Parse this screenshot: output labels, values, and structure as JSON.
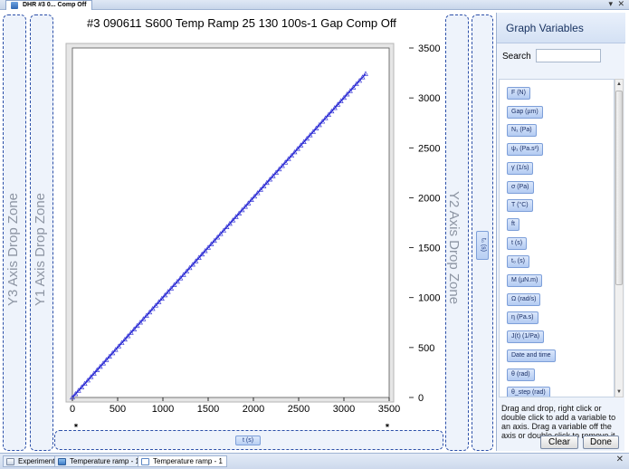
{
  "window": {
    "doc_tab_label": "DHR #3 0... Comp Off",
    "dropdown_glyph": "▾",
    "close_glyph": "✕"
  },
  "dropzones": {
    "y3": "Y3 Axis Drop Zone",
    "y1": "Y1 Axis Drop Zone",
    "y2": "Y2 Axis Drop Zone",
    "y2_variable": "t₀ (s)",
    "x_variable": "t (s)"
  },
  "chart_data": {
    "type": "scatter",
    "title": "#3 090611 S600 Temp Ramp 25 130 100s-1 Gap Comp Off",
    "xlim": [
      0,
      3500
    ],
    "ylim": [
      0,
      3500
    ],
    "xticks": [
      "0",
      "500",
      "1000",
      "1500",
      "2000",
      "2500",
      "3000",
      "3500"
    ],
    "yticks": [
      "0",
      "500",
      "1000",
      "1500",
      "2000",
      "2500",
      "3000",
      "3500"
    ],
    "series": [
      {
        "start": [
          0,
          0
        ],
        "end": [
          3240,
          3240
        ],
        "marker": "triangle",
        "color": "#2b2bd4"
      }
    ]
  },
  "panel": {
    "title": "Graph Variables",
    "search_label": "Search",
    "search_value": "",
    "variables": [
      "F (N)",
      "Gap (µm)",
      "N₁ (Pa)",
      "ψ₁ (Pa.s²)",
      "γ̇ (1/s)",
      "σ (Pa)",
      "T (°C)",
      "ft",
      "t (s)",
      "t₀ (s)",
      "M (µN.m)",
      "Ω (rad/s)",
      "η (Pa.s)",
      "J(t) (1/Pa)",
      "Date and time",
      "θ (rad)",
      "θ_step (rad)"
    ],
    "help_text": "Drag and drop, right click or double click to add a variable to an axis. Drag a variable off the axis or double click to remove it.",
    "clear_label": "Clear",
    "done_label": "Done",
    "scroll_up_glyph": "▲",
    "scroll_down_glyph": "▼"
  },
  "bottom_tabs": [
    {
      "label": "Experiment",
      "icon": "experiment-icon"
    },
    {
      "label": "Temperature ramp - 1",
      "icon": "table-icon"
    },
    {
      "label": "Temperature ramp - 1",
      "icon": "graph-icon"
    }
  ],
  "bottom_close_glyph": "✕",
  "colors": {
    "dashed_border": "#2b4fa8",
    "series": "#2b2bd4"
  }
}
